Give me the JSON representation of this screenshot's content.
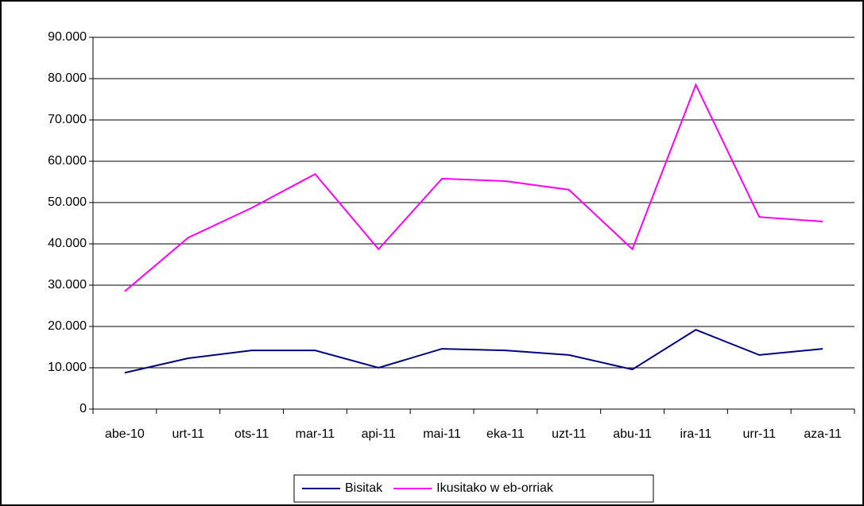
{
  "chart_data": {
    "type": "line",
    "categories": [
      "abe-10",
      "urt-11",
      "ots-11",
      "mar-11",
      "api-11",
      "mai-11",
      "eka-11",
      "uzt-11",
      "abu-11",
      "ira-11",
      "urr-11",
      "aza-11"
    ],
    "series": [
      {
        "name": "Bisitak",
        "color": "#000080",
        "values": [
          8800,
          12300,
          14200,
          14200,
          10000,
          14600,
          14200,
          13100,
          9600,
          19200,
          13100,
          14600
        ]
      },
      {
        "name": "Ikusitako w eb-orriak",
        "color": "#ff00ff",
        "values": [
          28500,
          41500,
          48700,
          56900,
          38700,
          55800,
          55200,
          53100,
          38700,
          78500,
          46500,
          45400
        ]
      }
    ],
    "ylim": [
      0,
      90000
    ],
    "yticks": [
      0,
      {
        "value": 10000,
        "label": "10.000"
      },
      {
        "value": 20000,
        "label": "20.000"
      },
      {
        "value": 30000,
        "label": "30.000"
      },
      {
        "value": 40000,
        "label": "40.000"
      },
      {
        "value": 50000,
        "label": "50.000"
      },
      {
        "value": 60000,
        "label": "60.000"
      },
      {
        "value": 70000,
        "label": "70.000"
      },
      {
        "value": 80000,
        "label": "80.000"
      },
      {
        "value": 90000,
        "label": "90.000"
      }
    ],
    "grid": true,
    "legend": "bottom"
  }
}
